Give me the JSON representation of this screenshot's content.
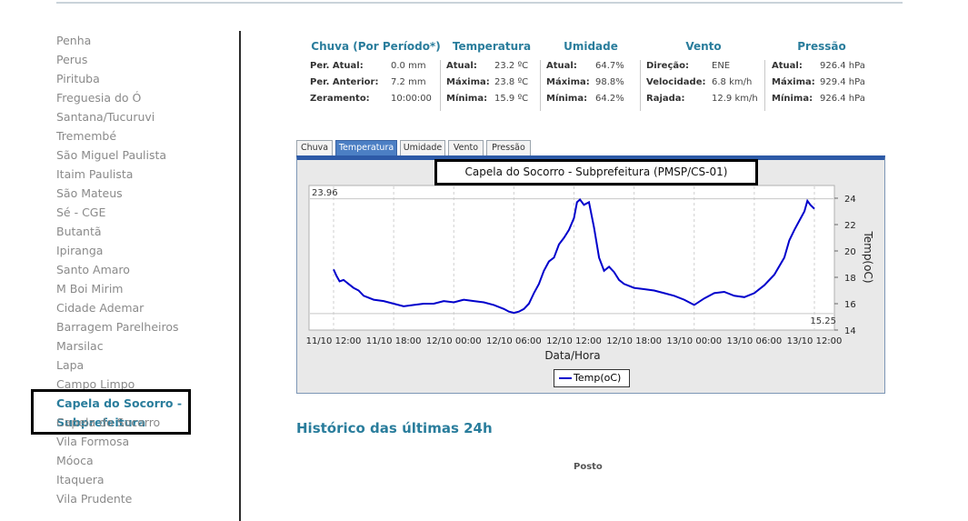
{
  "sidebar": {
    "items": [
      {
        "label": "Penha"
      },
      {
        "label": "Perus"
      },
      {
        "label": "Pirituba"
      },
      {
        "label": "Freguesia do Ó"
      },
      {
        "label": "Santana/Tucuruvi"
      },
      {
        "label": "Tremembé"
      },
      {
        "label": "São Miguel Paulista"
      },
      {
        "label": "Itaim Paulista"
      },
      {
        "label": "São Mateus"
      },
      {
        "label": "Sé - CGE"
      },
      {
        "label": "Butantã"
      },
      {
        "label": "Ipiranga"
      },
      {
        "label": "Santo Amaro"
      },
      {
        "label": "M Boi Mirim"
      },
      {
        "label": "Cidade Ademar"
      },
      {
        "label": "Barragem Parelheiros"
      },
      {
        "label": "Marsilac"
      },
      {
        "label": "Lapa"
      },
      {
        "label": "Campo Limpo"
      }
    ],
    "active": {
      "line1": "Capela do Socorro -",
      "line2": "Subprefeitura"
    },
    "items_after": [
      {
        "label": "Capela do Socorro"
      },
      {
        "label": "Vila Formosa"
      },
      {
        "label": "Móoca"
      },
      {
        "label": "Itaquera"
      },
      {
        "label": "Vila Prudente"
      }
    ]
  },
  "summary": {
    "chuva": {
      "title": "Chuva (Por Período*)",
      "rows": [
        {
          "k": "Per. Atual:",
          "v": "0.0 mm"
        },
        {
          "k": "Per. Anterior:",
          "v": "7.2 mm"
        },
        {
          "k": "Zeramento:",
          "v": "10:00:00"
        }
      ]
    },
    "temperatura": {
      "title": "Temperatura",
      "rows": [
        {
          "k": "Atual:",
          "v": "23.2 ºC"
        },
        {
          "k": "Máxima:",
          "v": "23.8 ºC"
        },
        {
          "k": "Mínima:",
          "v": "15.9 ºC"
        }
      ]
    },
    "umidade": {
      "title": "Umidade",
      "rows": [
        {
          "k": "Atual:",
          "v": "64.7%"
        },
        {
          "k": "Máxima:",
          "v": "98.8%"
        },
        {
          "k": "Mínima:",
          "v": "64.2%"
        }
      ]
    },
    "vento": {
      "title": "Vento",
      "rows": [
        {
          "k": "Direção:",
          "v": "ENE"
        },
        {
          "k": "Velocidade:",
          "v": "6.8 km/h"
        },
        {
          "k": "Rajada:",
          "v": "12.9 km/h"
        }
      ]
    },
    "pressao": {
      "title": "Pressão",
      "rows": [
        {
          "k": "Atual:",
          "v": "926.4 hPa"
        },
        {
          "k": "Máxima:",
          "v": "929.4 hPa"
        },
        {
          "k": "Mínima:",
          "v": "926.4 hPa"
        }
      ]
    }
  },
  "tabs": [
    {
      "label": "Chuva",
      "active": false
    },
    {
      "label": "Temperatura",
      "active": true
    },
    {
      "label": "Umidade",
      "active": false
    },
    {
      "label": "Vento",
      "active": false
    },
    {
      "label": "Pressão",
      "active": false
    }
  ],
  "chart_data": {
    "type": "line",
    "title": "Capela do Socorro - Subprefeitura (PMSP/CS-01)",
    "xlabel": "Data/Hora",
    "ylabel": "Temp(oC)",
    "ylim": [
      14,
      25
    ],
    "yticks": [
      14,
      16,
      18,
      20,
      22,
      24
    ],
    "xticks": [
      "11/10 12:00",
      "11/10 18:00",
      "12/10 00:00",
      "12/10 06:00",
      "12/10 12:00",
      "12/10 18:00",
      "13/10 00:00",
      "13/10 06:00",
      "13/10 12:00"
    ],
    "max_label": "23.96",
    "min_label": "15.25",
    "max_value": 23.96,
    "min_value": 15.25,
    "grid": true,
    "legend": "bottom-center",
    "series": [
      {
        "name": "Temp(oC)",
        "color": "#0000cc",
        "x": [
          0,
          0.3,
          0.6,
          1,
          1.5,
          2,
          2.5,
          3,
          4,
          5,
          6,
          7,
          8,
          9,
          10,
          11,
          12,
          13,
          14,
          15,
          16,
          17,
          17.5,
          18,
          18.5,
          19,
          19.5,
          20,
          20.5,
          21,
          21.5,
          22,
          22.5,
          23,
          23.5,
          24,
          24.3,
          24.6,
          25,
          25.5,
          26,
          26.5,
          27,
          27.5,
          28,
          28.5,
          29,
          30,
          31,
          32,
          33,
          34,
          35,
          36,
          37,
          38,
          39,
          40,
          41,
          42,
          43,
          44,
          45,
          45.5,
          46,
          46.5,
          47,
          47.3,
          47.6,
          48
        ],
        "values": [
          18.6,
          18.1,
          17.7,
          17.8,
          17.5,
          17.2,
          17.0,
          16.6,
          16.3,
          16.2,
          16.0,
          15.8,
          15.9,
          16.0,
          16.0,
          16.2,
          16.1,
          16.3,
          16.2,
          16.1,
          15.9,
          15.6,
          15.4,
          15.3,
          15.4,
          15.6,
          16.0,
          16.8,
          17.5,
          18.5,
          19.2,
          19.5,
          20.5,
          21.0,
          21.6,
          22.5,
          23.7,
          23.9,
          23.5,
          23.7,
          21.8,
          19.5,
          18.5,
          18.8,
          18.4,
          17.8,
          17.5,
          17.2,
          17.1,
          17.0,
          16.8,
          16.6,
          16.3,
          15.9,
          16.4,
          16.8,
          16.9,
          16.6,
          16.5,
          16.8,
          17.4,
          18.2,
          19.5,
          20.8,
          21.6,
          22.3,
          23.0,
          23.8,
          23.5,
          23.2
        ]
      }
    ]
  },
  "history": {
    "title": "Histórico das últimas 24h"
  },
  "table": {
    "header": "Posto"
  }
}
